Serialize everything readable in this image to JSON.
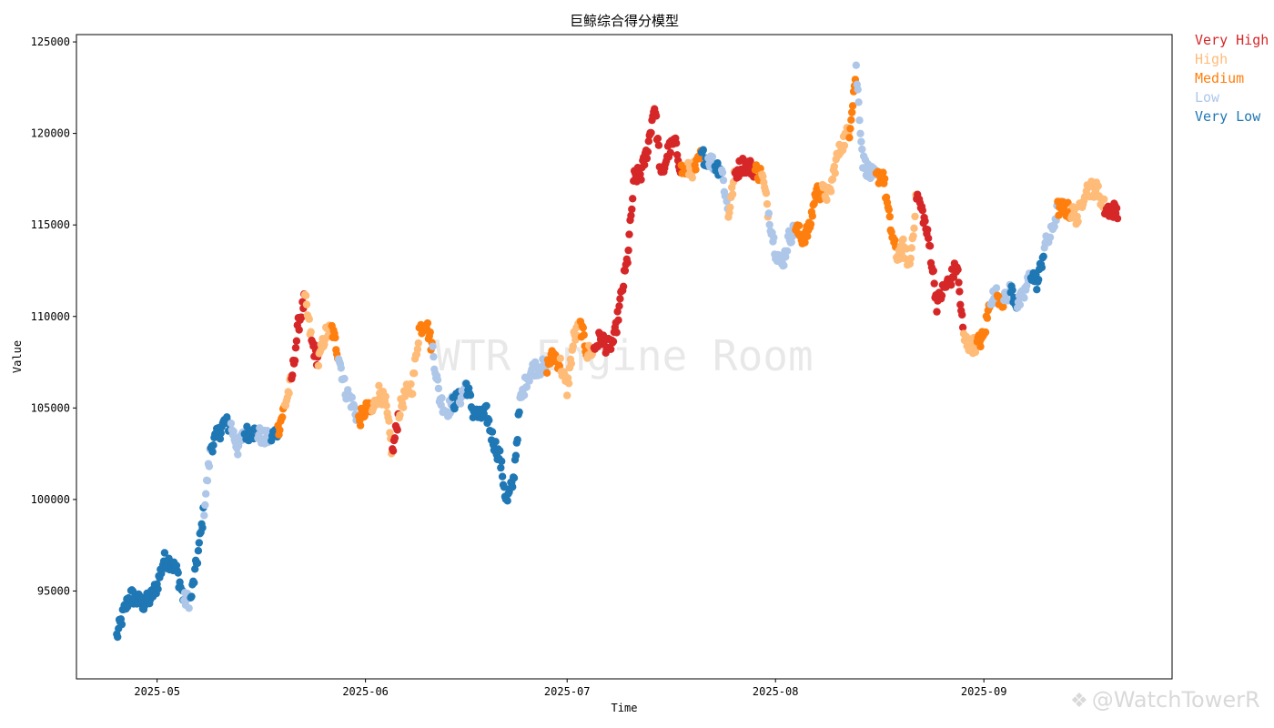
{
  "chart_data": {
    "type": "scatter",
    "title": "巨鲸综合得分模型",
    "xlabel": "Time",
    "ylabel": "Value",
    "x_range": [
      "2025-04-19",
      "2025-09-29"
    ],
    "ylim": [
      90200,
      125400
    ],
    "y_ticks": [
      95000,
      100000,
      105000,
      110000,
      115000,
      120000,
      125000
    ],
    "x_ticks": [
      {
        "date": "2025-05-01",
        "label": "2025-05"
      },
      {
        "date": "2025-06-01",
        "label": "2025-06"
      },
      {
        "date": "2025-07-01",
        "label": "2025-07"
      },
      {
        "date": "2025-08-01",
        "label": "2025-08"
      },
      {
        "date": "2025-09-01",
        "label": "2025-09"
      }
    ],
    "grid": false,
    "legend_position": "outside-top-right",
    "watermark": "WTR Engine Room",
    "categories": [
      {
        "name": "Very High",
        "color": "#d62728"
      },
      {
        "name": "High",
        "color": "#ffbb78"
      },
      {
        "name": "Medium",
        "color": "#ff7f0e"
      },
      {
        "name": "Low",
        "color": "#aec7e8"
      },
      {
        "name": "Very Low",
        "color": "#1f77b4"
      }
    ],
    "price_path": [
      [
        "2025-04-25",
        92500,
        "Very Low"
      ],
      [
        "2025-04-26",
        93800,
        "Very Low"
      ],
      [
        "2025-04-27",
        94800,
        "Very Low"
      ],
      [
        "2025-04-28",
        94500,
        "Very Low"
      ],
      [
        "2025-04-29",
        94300,
        "Very Low"
      ],
      [
        "2025-04-30",
        94600,
        "Very Low"
      ],
      [
        "2025-05-01",
        95300,
        "Very Low"
      ],
      [
        "2025-05-02",
        96700,
        "Very Low"
      ],
      [
        "2025-05-03",
        96600,
        "Very Low"
      ],
      [
        "2025-05-04",
        96000,
        "Very Low"
      ],
      [
        "2025-05-05",
        94500,
        "Low"
      ],
      [
        "2025-05-06",
        94500,
        "Very Low"
      ],
      [
        "2025-05-07",
        96800,
        "Very Low"
      ],
      [
        "2025-05-08",
        99500,
        "Low"
      ],
      [
        "2025-05-09",
        102900,
        "Very Low"
      ],
      [
        "2025-05-10",
        103500,
        "Very Low"
      ],
      [
        "2025-05-11",
        104200,
        "Very Low"
      ],
      [
        "2025-05-12",
        104000,
        "Low"
      ],
      [
        "2025-05-13",
        102800,
        "Low"
      ],
      [
        "2025-05-14",
        103600,
        "Very Low"
      ],
      [
        "2025-05-15",
        103700,
        "Very Low"
      ],
      [
        "2025-05-16",
        103600,
        "Low"
      ],
      [
        "2025-05-17",
        103300,
        "Low"
      ],
      [
        "2025-05-18",
        103400,
        "Very Low"
      ],
      [
        "2025-05-19",
        103800,
        "Medium"
      ],
      [
        "2025-05-20",
        105100,
        "High"
      ],
      [
        "2025-05-21",
        106500,
        "Very High"
      ],
      [
        "2025-05-22",
        109500,
        "Very High"
      ],
      [
        "2025-05-23",
        111000,
        "High"
      ],
      [
        "2025-05-24",
        108600,
        "Very High"
      ],
      [
        "2025-05-25",
        107500,
        "High"
      ],
      [
        "2025-05-26",
        109000,
        "High"
      ],
      [
        "2025-05-27",
        109300,
        "Medium"
      ],
      [
        "2025-05-28",
        107900,
        "Low"
      ],
      [
        "2025-05-29",
        106000,
        "Low"
      ],
      [
        "2025-05-30",
        105300,
        "Low"
      ],
      [
        "2025-05-31",
        104300,
        "Medium"
      ],
      [
        "2025-06-01",
        104900,
        "Medium"
      ],
      [
        "2025-06-02",
        104800,
        "High"
      ],
      [
        "2025-06-03",
        105900,
        "High"
      ],
      [
        "2025-06-04",
        105200,
        "High"
      ],
      [
        "2025-06-05",
        102500,
        "Very High"
      ],
      [
        "2025-06-06",
        104800,
        "High"
      ],
      [
        "2025-06-07",
        105800,
        "High"
      ],
      [
        "2025-06-08",
        106200,
        "High"
      ],
      [
        "2025-06-09",
        109300,
        "Medium"
      ],
      [
        "2025-06-10",
        109700,
        "Medium"
      ],
      [
        "2025-06-11",
        108200,
        "Low"
      ],
      [
        "2025-06-12",
        105600,
        "Low"
      ],
      [
        "2025-06-13",
        104800,
        "Low"
      ],
      [
        "2025-06-14",
        105300,
        "Very Low"
      ],
      [
        "2025-06-15",
        105500,
        "Low"
      ],
      [
        "2025-06-16",
        106300,
        "Very Low"
      ],
      [
        "2025-06-17",
        104800,
        "Very Low"
      ],
      [
        "2025-06-18",
        104500,
        "Very Low"
      ],
      [
        "2025-06-19",
        104700,
        "Very Low"
      ],
      [
        "2025-06-20",
        103200,
        "Very Low"
      ],
      [
        "2025-06-21",
        102300,
        "Very Low"
      ],
      [
        "2025-06-22",
        99800,
        "Very Low"
      ],
      [
        "2025-06-23",
        101000,
        "Very Low"
      ],
      [
        "2025-06-24",
        105300,
        "Low"
      ],
      [
        "2025-06-25",
        106600,
        "Low"
      ],
      [
        "2025-06-26",
        107200,
        "Low"
      ],
      [
        "2025-06-27",
        107200,
        "Low"
      ],
      [
        "2025-06-28",
        107300,
        "Medium"
      ],
      [
        "2025-06-29",
        107900,
        "Medium"
      ],
      [
        "2025-06-30",
        107400,
        "High"
      ],
      [
        "2025-07-01",
        106000,
        "High"
      ],
      [
        "2025-07-02",
        108800,
        "High"
      ],
      [
        "2025-07-03",
        109500,
        "Medium"
      ],
      [
        "2025-07-04",
        108000,
        "High"
      ],
      [
        "2025-07-05",
        108200,
        "Very High"
      ],
      [
        "2025-07-06",
        108900,
        "Very High"
      ],
      [
        "2025-07-07",
        108300,
        "Very High"
      ],
      [
        "2025-07-08",
        108700,
        "Very High"
      ],
      [
        "2025-07-09",
        111000,
        "Very High"
      ],
      [
        "2025-07-10",
        113200,
        "Very High"
      ],
      [
        "2025-07-11",
        117600,
        "Very High"
      ],
      [
        "2025-07-12",
        117800,
        "Very High"
      ],
      [
        "2025-07-13",
        119200,
        "Very High"
      ],
      [
        "2025-07-14",
        121600,
        "Very High"
      ],
      [
        "2025-07-15",
        117500,
        "Very High"
      ],
      [
        "2025-07-16",
        119000,
        "Very High"
      ],
      [
        "2025-07-17",
        119500,
        "Very High"
      ],
      [
        "2025-07-18",
        118000,
        "Medium"
      ],
      [
        "2025-07-19",
        118000,
        "High"
      ],
      [
        "2025-07-20",
        118000,
        "Medium"
      ],
      [
        "2025-07-21",
        118800,
        "Very Low"
      ],
      [
        "2025-07-22",
        118600,
        "Low"
      ],
      [
        "2025-07-23",
        118300,
        "Very Low"
      ],
      [
        "2025-07-24",
        118000,
        "Low"
      ],
      [
        "2025-07-25",
        115600,
        "High"
      ],
      [
        "2025-07-26",
        117800,
        "Very High"
      ],
      [
        "2025-07-27",
        118300,
        "Very High"
      ],
      [
        "2025-07-28",
        118200,
        "Very High"
      ],
      [
        "2025-07-29",
        118000,
        "Medium"
      ],
      [
        "2025-07-30",
        117700,
        "High"
      ],
      [
        "2025-07-31",
        115600,
        "Low"
      ],
      [
        "2025-08-01",
        113600,
        "Low"
      ],
      [
        "2025-08-02",
        112800,
        "Low"
      ],
      [
        "2025-08-03",
        114300,
        "Low"
      ],
      [
        "2025-08-04",
        114800,
        "Medium"
      ],
      [
        "2025-08-05",
        114300,
        "Medium"
      ],
      [
        "2025-08-06",
        114700,
        "Medium"
      ],
      [
        "2025-08-07",
        116800,
        "Medium"
      ],
      [
        "2025-08-08",
        116800,
        "High"
      ],
      [
        "2025-08-09",
        116600,
        "High"
      ],
      [
        "2025-08-10",
        118500,
        "High"
      ],
      [
        "2025-08-11",
        119500,
        "High"
      ],
      [
        "2025-08-12",
        120200,
        "Medium"
      ],
      [
        "2025-08-13",
        123500,
        "Low"
      ],
      [
        "2025-08-14",
        118500,
        "Low"
      ],
      [
        "2025-08-15",
        117800,
        "Low"
      ],
      [
        "2025-08-16",
        117600,
        "Medium"
      ],
      [
        "2025-08-17",
        117800,
        "Medium"
      ],
      [
        "2025-08-18",
        115100,
        "Medium"
      ],
      [
        "2025-08-19",
        113300,
        "High"
      ],
      [
        "2025-08-20",
        113800,
        "High"
      ],
      [
        "2025-08-21",
        112800,
        "High"
      ],
      [
        "2025-08-22",
        116700,
        "Very High"
      ],
      [
        "2025-08-23",
        115500,
        "Very High"
      ],
      [
        "2025-08-24",
        113700,
        "Very High"
      ],
      [
        "2025-08-25",
        110700,
        "Very High"
      ],
      [
        "2025-08-26",
        111500,
        "Very High"
      ],
      [
        "2025-08-27",
        112000,
        "Very High"
      ],
      [
        "2025-08-28",
        112800,
        "Very High"
      ],
      [
        "2025-08-29",
        108800,
        "High"
      ],
      [
        "2025-08-30",
        108400,
        "High"
      ],
      [
        "2025-08-31",
        108500,
        "Medium"
      ],
      [
        "2025-09-01",
        108900,
        "Medium"
      ],
      [
        "2025-09-02",
        111000,
        "Low"
      ],
      [
        "2025-09-03",
        111200,
        "Medium"
      ],
      [
        "2025-09-04",
        110800,
        "Low"
      ],
      [
        "2025-09-05",
        111500,
        "Very Low"
      ],
      [
        "2025-09-06",
        110600,
        "Low"
      ],
      [
        "2025-09-07",
        111200,
        "Low"
      ],
      [
        "2025-09-08",
        112400,
        "Very Low"
      ],
      [
        "2025-09-09",
        111800,
        "Very Low"
      ],
      [
        "2025-09-10",
        113800,
        "Low"
      ],
      [
        "2025-09-11",
        114500,
        "Low"
      ],
      [
        "2025-09-12",
        115900,
        "Medium"
      ],
      [
        "2025-09-13",
        115900,
        "Medium"
      ],
      [
        "2025-09-14",
        115700,
        "High"
      ],
      [
        "2025-09-15",
        115400,
        "High"
      ],
      [
        "2025-09-16",
        116900,
        "High"
      ],
      [
        "2025-09-17",
        117000,
        "High"
      ],
      [
        "2025-09-18",
        116900,
        "High"
      ],
      [
        "2025-09-19",
        115900,
        "Very High"
      ],
      [
        "2025-09-20",
        115800,
        "Very High"
      ]
    ]
  },
  "watermark_bottom": "@WatchTowerR"
}
